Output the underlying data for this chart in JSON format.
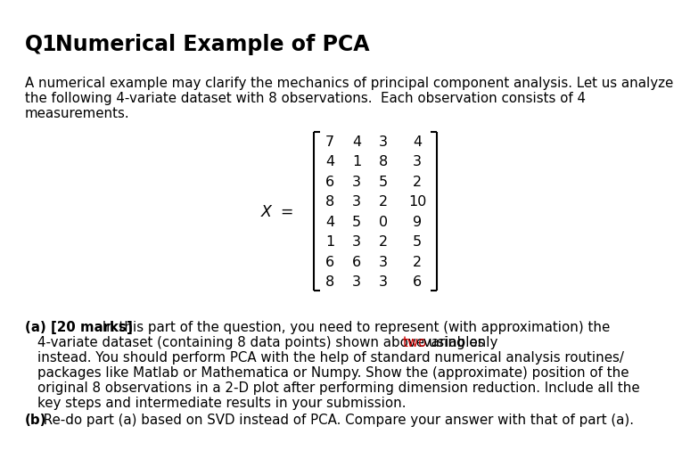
{
  "title_q": "Q1",
  "title_rest": "   Numerical Example of PCA",
  "bg_color": "#ffffff",
  "text_color": "#000000",
  "red_color": "#cc0000",
  "intro_line1": "A numerical example may clarify the mechanics of principal component analysis. Let us analyze",
  "intro_line2": "the following 4-variate dataset with 8 observations.  Each observation consists of 4",
  "intro_line3": "measurements.",
  "matrix_rows": [
    [
      "7",
      "4",
      "3",
      "4"
    ],
    [
      "4",
      "1",
      "8",
      "3"
    ],
    [
      "6",
      "3",
      "5",
      "2"
    ],
    [
      "8",
      "3",
      "2",
      "10"
    ],
    [
      "4",
      "5",
      "0",
      "9"
    ],
    [
      "1",
      "3",
      "2",
      "5"
    ],
    [
      "6",
      "6",
      "3",
      "2"
    ],
    [
      "8",
      "3",
      "3",
      "6"
    ]
  ],
  "part_a_bold": "(a) [20 marks]",
  "part_a_line1_after_bold": " In this part of the question, you need to represent (with approximation) the",
  "part_a_line2_before_two": "4-variate dataset (containing 8 data points) shown above using only ",
  "part_a_red": "two",
  "part_a_line2_after_two": " variables",
  "part_a_line3": "instead. You should perform PCA with the help of standard numerical analysis routines/",
  "part_a_line4": "packages like Matlab or Mathematica or Numpy. Show the (approximate) position of the",
  "part_a_line5": "original 8 observations in a 2-D plot after performing dimension reduction. Include all the",
  "part_a_line6": "key steps and intermediate results in your submission.",
  "part_b_bold": "(b)",
  "part_b_text": " Re-do part (a) based on SVD instead of PCA. Compare your answer with that of part (a).",
  "title_fontsize": 17,
  "body_fontsize": 10.8,
  "matrix_fontsize": 11.5
}
